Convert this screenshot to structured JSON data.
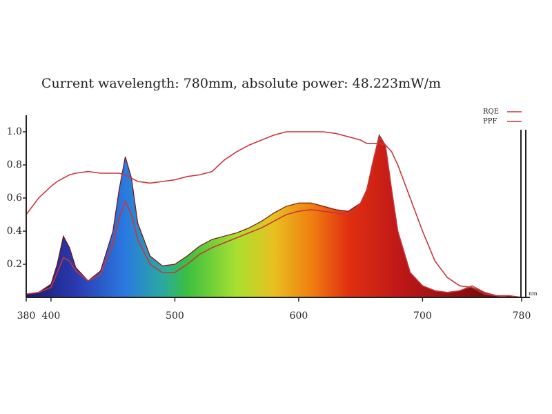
{
  "chart_data": {
    "type": "line",
    "title": "Current wavelength: 780mm, absolute power: 48.223mW/m",
    "x_label": "nm",
    "x": [
      380,
      390,
      400,
      405,
      410,
      415,
      420,
      430,
      440,
      450,
      455,
      460,
      465,
      470,
      480,
      490,
      500,
      510,
      520,
      530,
      540,
      550,
      560,
      570,
      580,
      590,
      600,
      610,
      620,
      630,
      640,
      650,
      655,
      660,
      665,
      670,
      675,
      680,
      690,
      700,
      710,
      720,
      730,
      740,
      750,
      760,
      770,
      780
    ],
    "series": [
      {
        "values": [
          0.02,
          0.03,
          0.08,
          0.2,
          0.37,
          0.3,
          0.18,
          0.1,
          0.16,
          0.4,
          0.65,
          0.85,
          0.72,
          0.45,
          0.25,
          0.19,
          0.2,
          0.25,
          0.31,
          0.35,
          0.37,
          0.39,
          0.42,
          0.46,
          0.51,
          0.55,
          0.57,
          0.57,
          0.55,
          0.53,
          0.52,
          0.57,
          0.65,
          0.82,
          0.98,
          0.92,
          0.65,
          0.4,
          0.15,
          0.07,
          0.04,
          0.03,
          0.04,
          0.06,
          0.03,
          0.01,
          0.01,
          0
        ]
      },
      {
        "name": "RQE",
        "color": "#c8363a",
        "values": [
          0.5,
          0.6,
          0.67,
          0.7,
          0.72,
          0.74,
          0.75,
          0.76,
          0.75,
          0.75,
          0.75,
          0.74,
          0.72,
          0.7,
          0.69,
          0.7,
          0.71,
          0.73,
          0.74,
          0.76,
          0.83,
          0.88,
          0.92,
          0.95,
          0.98,
          1.0,
          1.0,
          1.0,
          1.0,
          0.99,
          0.97,
          0.95,
          0.93,
          0.93,
          0.93,
          0.92,
          0.88,
          0.8,
          0.6,
          0.4,
          0.22,
          0.12,
          0.07,
          0.06,
          0.02,
          0.01,
          0,
          0
        ]
      },
      {
        "name": "PPF",
        "color": "#c8363a",
        "values": [
          0.02,
          0.03,
          0.06,
          0.15,
          0.24,
          0.22,
          0.16,
          0.1,
          0.14,
          0.32,
          0.48,
          0.58,
          0.5,
          0.35,
          0.2,
          0.15,
          0.15,
          0.2,
          0.26,
          0.3,
          0.33,
          0.36,
          0.39,
          0.42,
          0.46,
          0.5,
          0.52,
          0.53,
          0.52,
          0.51,
          0.5,
          0.57,
          0.65,
          0.82,
          0.97,
          0.92,
          0.65,
          0.4,
          0.15,
          0.07,
          0.04,
          0.03,
          0.04,
          0.07,
          0.03,
          0.01,
          0.01,
          0
        ]
      }
    ],
    "xlim": [
      380,
      780
    ],
    "ylim": [
      0,
      1.1
    ],
    "xticks": [
      380,
      400,
      500,
      600,
      700,
      780
    ],
    "yticks": [
      0.2,
      0.4,
      0.6,
      0.8,
      {
        "value": 1,
        "label": "1.0"
      }
    ]
  }
}
